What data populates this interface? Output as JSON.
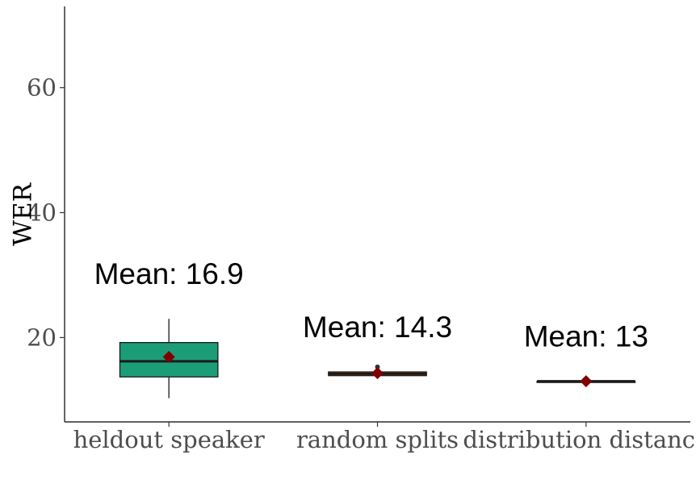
{
  "chart_data": {
    "type": "boxplot",
    "title": "",
    "xlabel": "",
    "ylabel": "WER",
    "ylim": [
      6.5,
      73
    ],
    "yticks": [
      20,
      40,
      60
    ],
    "grid": false,
    "legend": "none",
    "categories": [
      "heldout speaker",
      "random splits",
      "distribution distance"
    ],
    "boxes": [
      {
        "category": "heldout speaker",
        "min": 10.3,
        "q1": 13.7,
        "median": 16.2,
        "q3": 19.2,
        "max": 23.0,
        "mean": 16.9,
        "outliers": [],
        "fill": "#1b9e77",
        "mean_label": "Mean: 16.9"
      },
      {
        "category": "random splits",
        "min": 13.9,
        "q1": 13.9,
        "median": 14.2,
        "q3": 14.5,
        "max": 14.5,
        "mean": 14.3,
        "outliers": [
          15.3
        ],
        "fill": "#d95f02",
        "mean_label": "Mean: 14.3"
      },
      {
        "category": "distribution distance",
        "min": 13.0,
        "q1": 13.0,
        "median": 13.0,
        "q3": 13.0,
        "max": 13.0,
        "mean": 13.0,
        "outliers": [],
        "fill": "#7570b3",
        "mean_label": "Mean: 13"
      }
    ],
    "mean_marker_color": "#7f0000",
    "line_color": "#1a1a1a"
  }
}
